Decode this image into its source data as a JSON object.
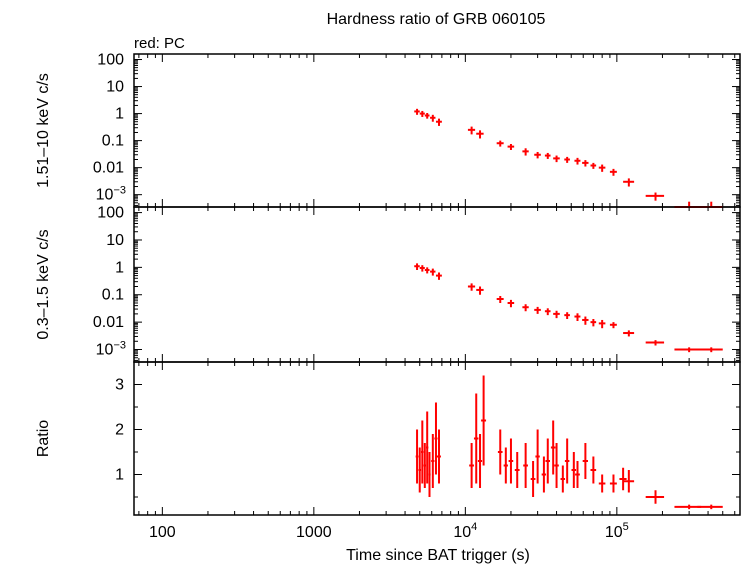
{
  "title": "Hardness ratio of GRB 060105",
  "legend_note": "red: PC",
  "xlabel": "Time since BAT trigger (s)",
  "colors": {
    "data": "#ff0000",
    "axes": "#000000"
  },
  "chart_data": [
    {
      "type": "scatter",
      "panel": "top",
      "ylabel": "1.51–10 keV c/s",
      "xscale": "log",
      "yscale": "log",
      "xlim": [
        65,
        650000
      ],
      "ylim": [
        0.00035,
        160
      ],
      "x_ticks": [
        100,
        1000,
        10000,
        100000
      ],
      "y_ticks": [
        {
          "value": 100,
          "label": "100"
        },
        {
          "value": 10,
          "label": "10"
        },
        {
          "value": 1,
          "label": "1"
        },
        {
          "value": 0.1,
          "label": "0.1"
        },
        {
          "value": 0.01,
          "label": "0.01"
        },
        {
          "value": 0.001,
          "label": "10",
          "sup": "−3"
        }
      ],
      "series": [
        {
          "x": [
            4800,
            5200,
            5600,
            6100,
            6700,
            11000,
            12500,
            17000,
            20000,
            25000,
            30000,
            35000,
            40000,
            47000,
            55000,
            62000,
            70000,
            80000,
            95000,
            120000,
            180000,
            300000,
            420000
          ],
          "y": [
            1.2,
            1.0,
            0.85,
            0.7,
            0.5,
            0.25,
            0.18,
            0.08,
            0.06,
            0.04,
            0.03,
            0.028,
            0.022,
            0.02,
            0.018,
            0.015,
            0.012,
            0.01,
            0.007,
            0.003,
            0.0009,
            0.00035,
            0.00035
          ],
          "xerr": [
            200,
            200,
            200,
            250,
            300,
            600,
            700,
            900,
            1000,
            1200,
            1500,
            1500,
            2000,
            2000,
            2500,
            3000,
            3000,
            4000,
            5000,
            10000,
            25000,
            60000,
            80000
          ],
          "yerr": [
            0.3,
            0.25,
            0.2,
            0.2,
            0.15,
            0.08,
            0.06,
            0.02,
            0.015,
            0.012,
            0.008,
            0.007,
            0.006,
            0.005,
            0.005,
            0.004,
            0.003,
            0.003,
            0.002,
            0.001,
            0.0003,
            0.0002,
            0.0002
          ]
        }
      ]
    },
    {
      "type": "scatter",
      "panel": "middle",
      "ylabel": "0.3–1.5 keV c/s",
      "xscale": "log",
      "yscale": "log",
      "xlim": [
        65,
        650000
      ],
      "ylim": [
        0.00035,
        160
      ],
      "x_ticks": [
        100,
        1000,
        10000,
        100000
      ],
      "y_ticks": [
        {
          "value": 100,
          "label": "100"
        },
        {
          "value": 10,
          "label": "10"
        },
        {
          "value": 1,
          "label": "1"
        },
        {
          "value": 0.1,
          "label": "0.1"
        },
        {
          "value": 0.01,
          "label": "0.01"
        },
        {
          "value": 0.001,
          "label": "10",
          "sup": "−3"
        }
      ],
      "series": [
        {
          "x": [
            4800,
            5200,
            5600,
            6100,
            6700,
            11000,
            12500,
            17000,
            20000,
            25000,
            30000,
            35000,
            40000,
            47000,
            55000,
            62000,
            70000,
            80000,
            95000,
            120000,
            180000,
            300000,
            420000
          ],
          "y": [
            1.1,
            0.95,
            0.8,
            0.7,
            0.5,
            0.2,
            0.15,
            0.07,
            0.05,
            0.035,
            0.028,
            0.025,
            0.02,
            0.018,
            0.016,
            0.012,
            0.01,
            0.009,
            0.008,
            0.004,
            0.0018,
            0.001,
            0.001
          ],
          "xerr": [
            200,
            200,
            200,
            250,
            300,
            600,
            700,
            900,
            1000,
            1200,
            1500,
            1500,
            2000,
            2000,
            2500,
            3000,
            3000,
            4000,
            5000,
            10000,
            25000,
            60000,
            80000
          ],
          "yerr": [
            0.3,
            0.25,
            0.2,
            0.2,
            0.15,
            0.06,
            0.05,
            0.02,
            0.015,
            0.01,
            0.008,
            0.007,
            0.006,
            0.005,
            0.005,
            0.004,
            0.003,
            0.003,
            0.002,
            0.001,
            0.0004,
            0.0002,
            0.0002
          ]
        }
      ]
    },
    {
      "type": "scatter",
      "panel": "bottom",
      "ylabel": "Ratio",
      "xscale": "log",
      "yscale": "linear",
      "xlim": [
        65,
        650000
      ],
      "ylim": [
        0.1,
        3.5
      ],
      "x_ticks": [
        100,
        1000,
        10000,
        100000
      ],
      "y_ticks": [
        {
          "value": 1,
          "label": "1"
        },
        {
          "value": 2,
          "label": "2"
        },
        {
          "value": 3,
          "label": "3"
        }
      ],
      "series": [
        {
          "x": [
            4800,
            5000,
            5200,
            5400,
            5600,
            5800,
            6100,
            6400,
            6700,
            11000,
            11800,
            12500,
            13200,
            17000,
            18500,
            20000,
            22000,
            25000,
            28000,
            30000,
            33000,
            35000,
            38000,
            40000,
            44000,
            47000,
            52000,
            55000,
            62000,
            70000,
            80000,
            95000,
            110000,
            120000,
            180000,
            300000,
            420000
          ],
          "y": [
            1.4,
            1.1,
            1.5,
            1.2,
            1.6,
            1.0,
            1.3,
            1.8,
            1.4,
            1.2,
            1.8,
            1.3,
            2.2,
            1.5,
            1.2,
            1.3,
            1.1,
            1.2,
            0.9,
            1.4,
            1.0,
            1.3,
            1.6,
            1.2,
            0.9,
            1.3,
            1.1,
            1.0,
            1.3,
            1.1,
            0.8,
            0.8,
            0.9,
            0.85,
            0.5,
            0.28,
            0.28
          ],
          "xerr": [
            100,
            100,
            100,
            100,
            100,
            100,
            150,
            150,
            200,
            400,
            400,
            400,
            500,
            600,
            600,
            700,
            800,
            900,
            1000,
            1000,
            1100,
            1200,
            1300,
            1400,
            1500,
            1600,
            1800,
            2000,
            2500,
            3000,
            4000,
            5000,
            6000,
            10000,
            25000,
            60000,
            80000
          ],
          "yerr": [
            0.6,
            0.5,
            0.7,
            0.5,
            0.8,
            0.5,
            0.6,
            0.8,
            0.6,
            0.5,
            1.0,
            0.6,
            1.0,
            0.5,
            0.4,
            0.5,
            0.4,
            0.5,
            0.4,
            0.6,
            0.4,
            0.5,
            0.6,
            0.5,
            0.3,
            0.5,
            0.4,
            0.3,
            0.4,
            0.3,
            0.2,
            0.2,
            0.25,
            0.25,
            0.15,
            0.05,
            0.05
          ]
        }
      ]
    }
  ]
}
